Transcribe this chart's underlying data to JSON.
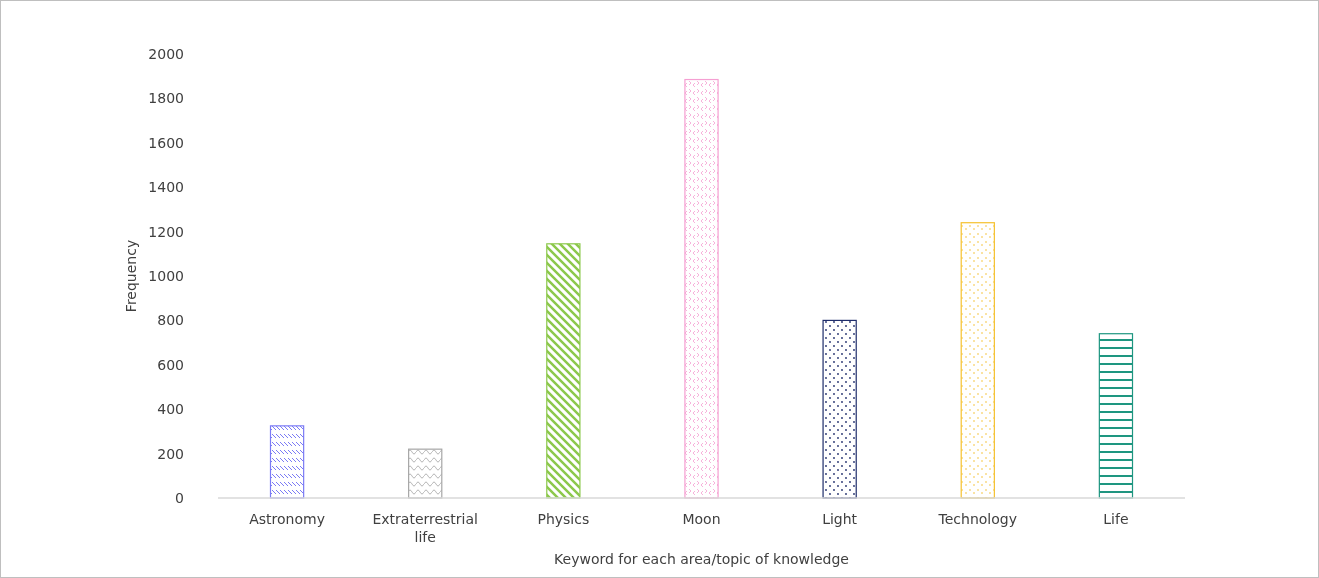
{
  "chart_data": {
    "type": "bar",
    "xlabel": "Keyword for each area/topic of knowledge",
    "ylabel": "Frequency",
    "categories": [
      "Astronomy",
      "Extraterrestrial life",
      "Physics",
      "Moon",
      "Light",
      "Technology",
      "Life"
    ],
    "values": [
      325,
      220,
      1145,
      1885,
      800,
      1240,
      740
    ],
    "colors": [
      "#7b7bf5",
      "#a6a6a6",
      "#8cc84b",
      "#f59fd2",
      "#1f2d6b",
      "#f5c12e",
      "#1e9680"
    ],
    "ylim": [
      0,
      2000
    ],
    "yticks": [
      0,
      200,
      400,
      600,
      800,
      1000,
      1200,
      1400,
      1600,
      1800,
      2000
    ]
  }
}
